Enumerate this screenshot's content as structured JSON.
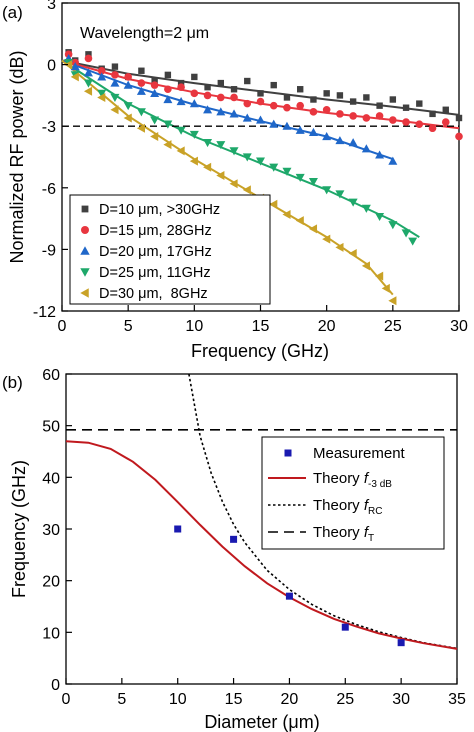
{
  "chart_data": [
    {
      "panel_label": "(a)",
      "type": "scatter",
      "annotation": "Wavelength=2 μm",
      "xlabel": "Frequency (GHz)",
      "ylabel": "Normalized RF power (dB)",
      "xlim": [
        0,
        30
      ],
      "ylim": [
        -12,
        3
      ],
      "xticks": [
        0,
        5,
        10,
        15,
        20,
        25,
        30
      ],
      "yticks": [
        3,
        0,
        -3,
        -6,
        -9,
        -12
      ],
      "xtick_labels": [
        "0",
        "5",
        "10",
        "15",
        "20",
        "25",
        "30"
      ],
      "ytick_labels": [
        "3",
        "0",
        "-3",
        "-6",
        "-9",
        "-12"
      ],
      "reference_line": {
        "y": -3,
        "style": "dashed"
      },
      "grid": false,
      "legend_position": "bottom-left",
      "series": [
        {
          "name": "D=10 μm, >30GHz",
          "marker": "square",
          "color": "#404040",
          "points": [
            [
              0.5,
              0.6
            ],
            [
              1,
              0.2
            ],
            [
              2,
              0.5
            ],
            [
              3,
              -0.2
            ],
            [
              4,
              -0.1
            ],
            [
              5,
              -0.6
            ],
            [
              6,
              -0.3
            ],
            [
              7,
              -0.8
            ],
            [
              8,
              -0.5
            ],
            [
              9,
              -0.9
            ],
            [
              10,
              -0.6
            ],
            [
              11,
              -1.1
            ],
            [
              12,
              -0.9
            ],
            [
              13,
              -1.2
            ],
            [
              14,
              -0.8
            ],
            [
              15,
              -1.4
            ],
            [
              16,
              -1.0
            ],
            [
              17,
              -1.6
            ],
            [
              18,
              -1.2
            ],
            [
              19,
              -1.7
            ],
            [
              20,
              -1.4
            ],
            [
              21,
              -1.5
            ],
            [
              22,
              -1.8
            ],
            [
              23,
              -1.6
            ],
            [
              24,
              -2.0
            ],
            [
              25,
              -1.7
            ],
            [
              26,
              -2.1
            ],
            [
              27,
              -1.9
            ],
            [
              28,
              -2.4
            ],
            [
              29,
              -2.2
            ],
            [
              30,
              -2.6
            ]
          ],
          "fit": [
            [
              0,
              0.2
            ],
            [
              5,
              -0.45
            ],
            [
              10,
              -0.9
            ],
            [
              15,
              -1.3
            ],
            [
              20,
              -1.7
            ],
            [
              25,
              -2.05
            ],
            [
              30,
              -2.45
            ]
          ]
        },
        {
          "name": "D=15 μm, 28GHz",
          "marker": "circle",
          "color": "#e8363f",
          "points": [
            [
              0.5,
              0.5
            ],
            [
              1,
              0.1
            ],
            [
              2,
              0.3
            ],
            [
              3,
              -0.3
            ],
            [
              4,
              -0.5
            ],
            [
              5,
              -0.6
            ],
            [
              6,
              -0.9
            ],
            [
              7,
              -1.0
            ],
            [
              8,
              -1.2
            ],
            [
              9,
              -1.1
            ],
            [
              10,
              -1.4
            ],
            [
              11,
              -1.5
            ],
            [
              12,
              -1.6
            ],
            [
              13,
              -1.6
            ],
            [
              14,
              -1.9
            ],
            [
              15,
              -1.8
            ],
            [
              16,
              -2.0
            ],
            [
              17,
              -2.1
            ],
            [
              18,
              -2.0
            ],
            [
              19,
              -2.3
            ],
            [
              20,
              -2.2
            ],
            [
              21,
              -2.4
            ],
            [
              22,
              -2.5
            ],
            [
              23,
              -2.6
            ],
            [
              24,
              -2.5
            ],
            [
              25,
              -2.7
            ],
            [
              26,
              -2.8
            ],
            [
              27,
              -2.9
            ],
            [
              28,
              -3.1
            ],
            [
              29,
              -2.8
            ],
            [
              30,
              -3.5
            ]
          ],
          "fit": [
            [
              0,
              0.2
            ],
            [
              5,
              -0.7
            ],
            [
              10,
              -1.35
            ],
            [
              15,
              -1.9
            ],
            [
              20,
              -2.35
            ],
            [
              25,
              -2.7
            ],
            [
              30,
              -3.1
            ]
          ]
        },
        {
          "name": "D=20 μm, 17GHz",
          "marker": "triangle-up",
          "color": "#1f67c9",
          "points": [
            [
              0.5,
              0.3
            ],
            [
              1,
              -0.1
            ],
            [
              2,
              -0.4
            ],
            [
              3,
              -0.6
            ],
            [
              4,
              -0.9
            ],
            [
              5,
              -1.0
            ],
            [
              6,
              -1.3
            ],
            [
              7,
              -1.4
            ],
            [
              8,
              -1.7
            ],
            [
              9,
              -1.8
            ],
            [
              10,
              -1.9
            ],
            [
              11,
              -2.2
            ],
            [
              12,
              -2.3
            ],
            [
              13,
              -2.4
            ],
            [
              14,
              -2.6
            ],
            [
              15,
              -2.7
            ],
            [
              16,
              -2.9
            ],
            [
              17,
              -3.0
            ],
            [
              18,
              -3.2
            ],
            [
              19,
              -3.3
            ],
            [
              20,
              -3.5
            ],
            [
              21,
              -3.7
            ],
            [
              22,
              -3.8
            ],
            [
              23,
              -4.1
            ],
            [
              24,
              -4.4
            ],
            [
              25,
              -4.7
            ]
          ],
          "fit": [
            [
              0,
              0.2
            ],
            [
              5,
              -1.0
            ],
            [
              10,
              -1.95
            ],
            [
              15,
              -2.75
            ],
            [
              20,
              -3.5
            ],
            [
              25,
              -4.6
            ]
          ]
        },
        {
          "name": "D=25 μm, 11GHz",
          "marker": "triangle-down",
          "color": "#1ea86a",
          "points": [
            [
              0.5,
              0.1
            ],
            [
              1,
              -0.5
            ],
            [
              2,
              -0.9
            ],
            [
              3,
              -1.4
            ],
            [
              4,
              -1.6
            ],
            [
              5,
              -2.0
            ],
            [
              6,
              -2.3
            ],
            [
              7,
              -2.7
            ],
            [
              8,
              -2.9
            ],
            [
              9,
              -3.2
            ],
            [
              10,
              -3.4
            ],
            [
              11,
              -3.8
            ],
            [
              12,
              -3.9
            ],
            [
              13,
              -4.2
            ],
            [
              14,
              -4.5
            ],
            [
              15,
              -4.7
            ],
            [
              16,
              -5.0
            ],
            [
              17,
              -5.2
            ],
            [
              18,
              -5.5
            ],
            [
              19,
              -5.7
            ],
            [
              20,
              -6.1
            ],
            [
              21,
              -6.3
            ],
            [
              22,
              -6.7
            ],
            [
              23,
              -7.0
            ],
            [
              24,
              -7.4
            ],
            [
              25,
              -7.8
            ],
            [
              26,
              -8.2
            ],
            [
              26.5,
              -8.6
            ]
          ],
          "fit": [
            [
              0,
              0.2
            ],
            [
              5,
              -1.9
            ],
            [
              10,
              -3.5
            ],
            [
              15,
              -4.8
            ],
            [
              20,
              -6.1
            ],
            [
              25,
              -7.6
            ],
            [
              27,
              -8.4
            ]
          ]
        },
        {
          "name": "D=30 μm,  8GHz",
          "marker": "triangle-left",
          "color": "#c9a227",
          "points": [
            [
              0.5,
              0.0
            ],
            [
              1,
              -0.6
            ],
            [
              2,
              -1.3
            ],
            [
              3,
              -1.6
            ],
            [
              4,
              -2.2
            ],
            [
              5,
              -2.6
            ],
            [
              6,
              -3.1
            ],
            [
              7,
              -3.5
            ],
            [
              8,
              -3.9
            ],
            [
              9,
              -4.2
            ],
            [
              10,
              -4.7
            ],
            [
              11,
              -5.0
            ],
            [
              12,
              -5.4
            ],
            [
              13,
              -5.8
            ],
            [
              14,
              -6.1
            ],
            [
              15,
              -6.5
            ],
            [
              16,
              -6.8
            ],
            [
              17,
              -7.3
            ],
            [
              18,
              -7.6
            ],
            [
              19,
              -8.0
            ],
            [
              20,
              -8.5
            ],
            [
              21,
              -8.9
            ],
            [
              22,
              -9.2
            ],
            [
              23,
              -9.8
            ],
            [
              24,
              -10.3
            ],
            [
              24.5,
              -10.9
            ],
            [
              25,
              -11.5
            ]
          ],
          "fit": [
            [
              0,
              0.2
            ],
            [
              5,
              -2.5
            ],
            [
              10,
              -4.6
            ],
            [
              15,
              -6.5
            ],
            [
              20,
              -8.4
            ],
            [
              23,
              -9.7
            ],
            [
              25,
              -11.2
            ]
          ]
        }
      ]
    },
    {
      "panel_label": "(b)",
      "type": "line",
      "xlabel": "Diameter (μm)",
      "ylabel": "Frequency (GHz)",
      "xlim": [
        0,
        35
      ],
      "ylim": [
        0,
        60
      ],
      "xticks": [
        0,
        5,
        10,
        15,
        20,
        25,
        30,
        35
      ],
      "yticks": [
        0,
        10,
        20,
        30,
        40,
        50,
        60
      ],
      "xtick_labels": [
        "0",
        "5",
        "10",
        "15",
        "20",
        "25",
        "30",
        "35"
      ],
      "ytick_labels": [
        "0",
        "10",
        "20",
        "30",
        "40",
        "50",
        "60"
      ],
      "grid": false,
      "legend_position": "top-right",
      "measurement": {
        "name": "Measurement",
        "color": "#1a1ab0",
        "marker": "square",
        "points": [
          [
            10,
            30
          ],
          [
            15,
            28
          ],
          [
            20,
            17
          ],
          [
            25,
            11
          ],
          [
            30,
            8
          ]
        ]
      },
      "theory_f3db": {
        "name_main": "Theory ",
        "name_italic": "f",
        "name_sub": "-3 dB",
        "color": "#c0191e",
        "style": "solid",
        "points": [
          [
            0,
            47
          ],
          [
            2,
            46.7
          ],
          [
            4,
            45.5
          ],
          [
            6,
            43
          ],
          [
            8,
            39.5
          ],
          [
            10,
            35.2
          ],
          [
            12,
            30.8
          ],
          [
            14,
            26.6
          ],
          [
            16,
            22.8
          ],
          [
            18,
            19.5
          ],
          [
            20,
            16.8
          ],
          [
            22,
            14.5
          ],
          [
            24,
            12.6
          ],
          [
            26,
            11.1
          ],
          [
            28,
            9.8
          ],
          [
            30,
            8.8
          ],
          [
            32,
            7.9
          ],
          [
            35,
            6.8
          ]
        ]
      },
      "theory_frc": {
        "name_main": "Theory ",
        "name_italic": "f",
        "name_sub": "RC",
        "color": "#000000",
        "style": "dotted",
        "points": [
          [
            11,
            60
          ],
          [
            12,
            48
          ],
          [
            13,
            40.8
          ],
          [
            14,
            35.3
          ],
          [
            15,
            30.9
          ],
          [
            16,
            27.4
          ],
          [
            18,
            22
          ],
          [
            20,
            18.3
          ],
          [
            22,
            15.4
          ],
          [
            24,
            13.2
          ],
          [
            26,
            11.5
          ],
          [
            28,
            10.1
          ],
          [
            30,
            9
          ],
          [
            32,
            8
          ],
          [
            35,
            6.9
          ]
        ]
      },
      "theory_ft": {
        "name_main": "Theory ",
        "name_italic": "f",
        "name_sub": "T",
        "color": "#000000",
        "style": "dashed",
        "y": 49.2
      }
    }
  ]
}
